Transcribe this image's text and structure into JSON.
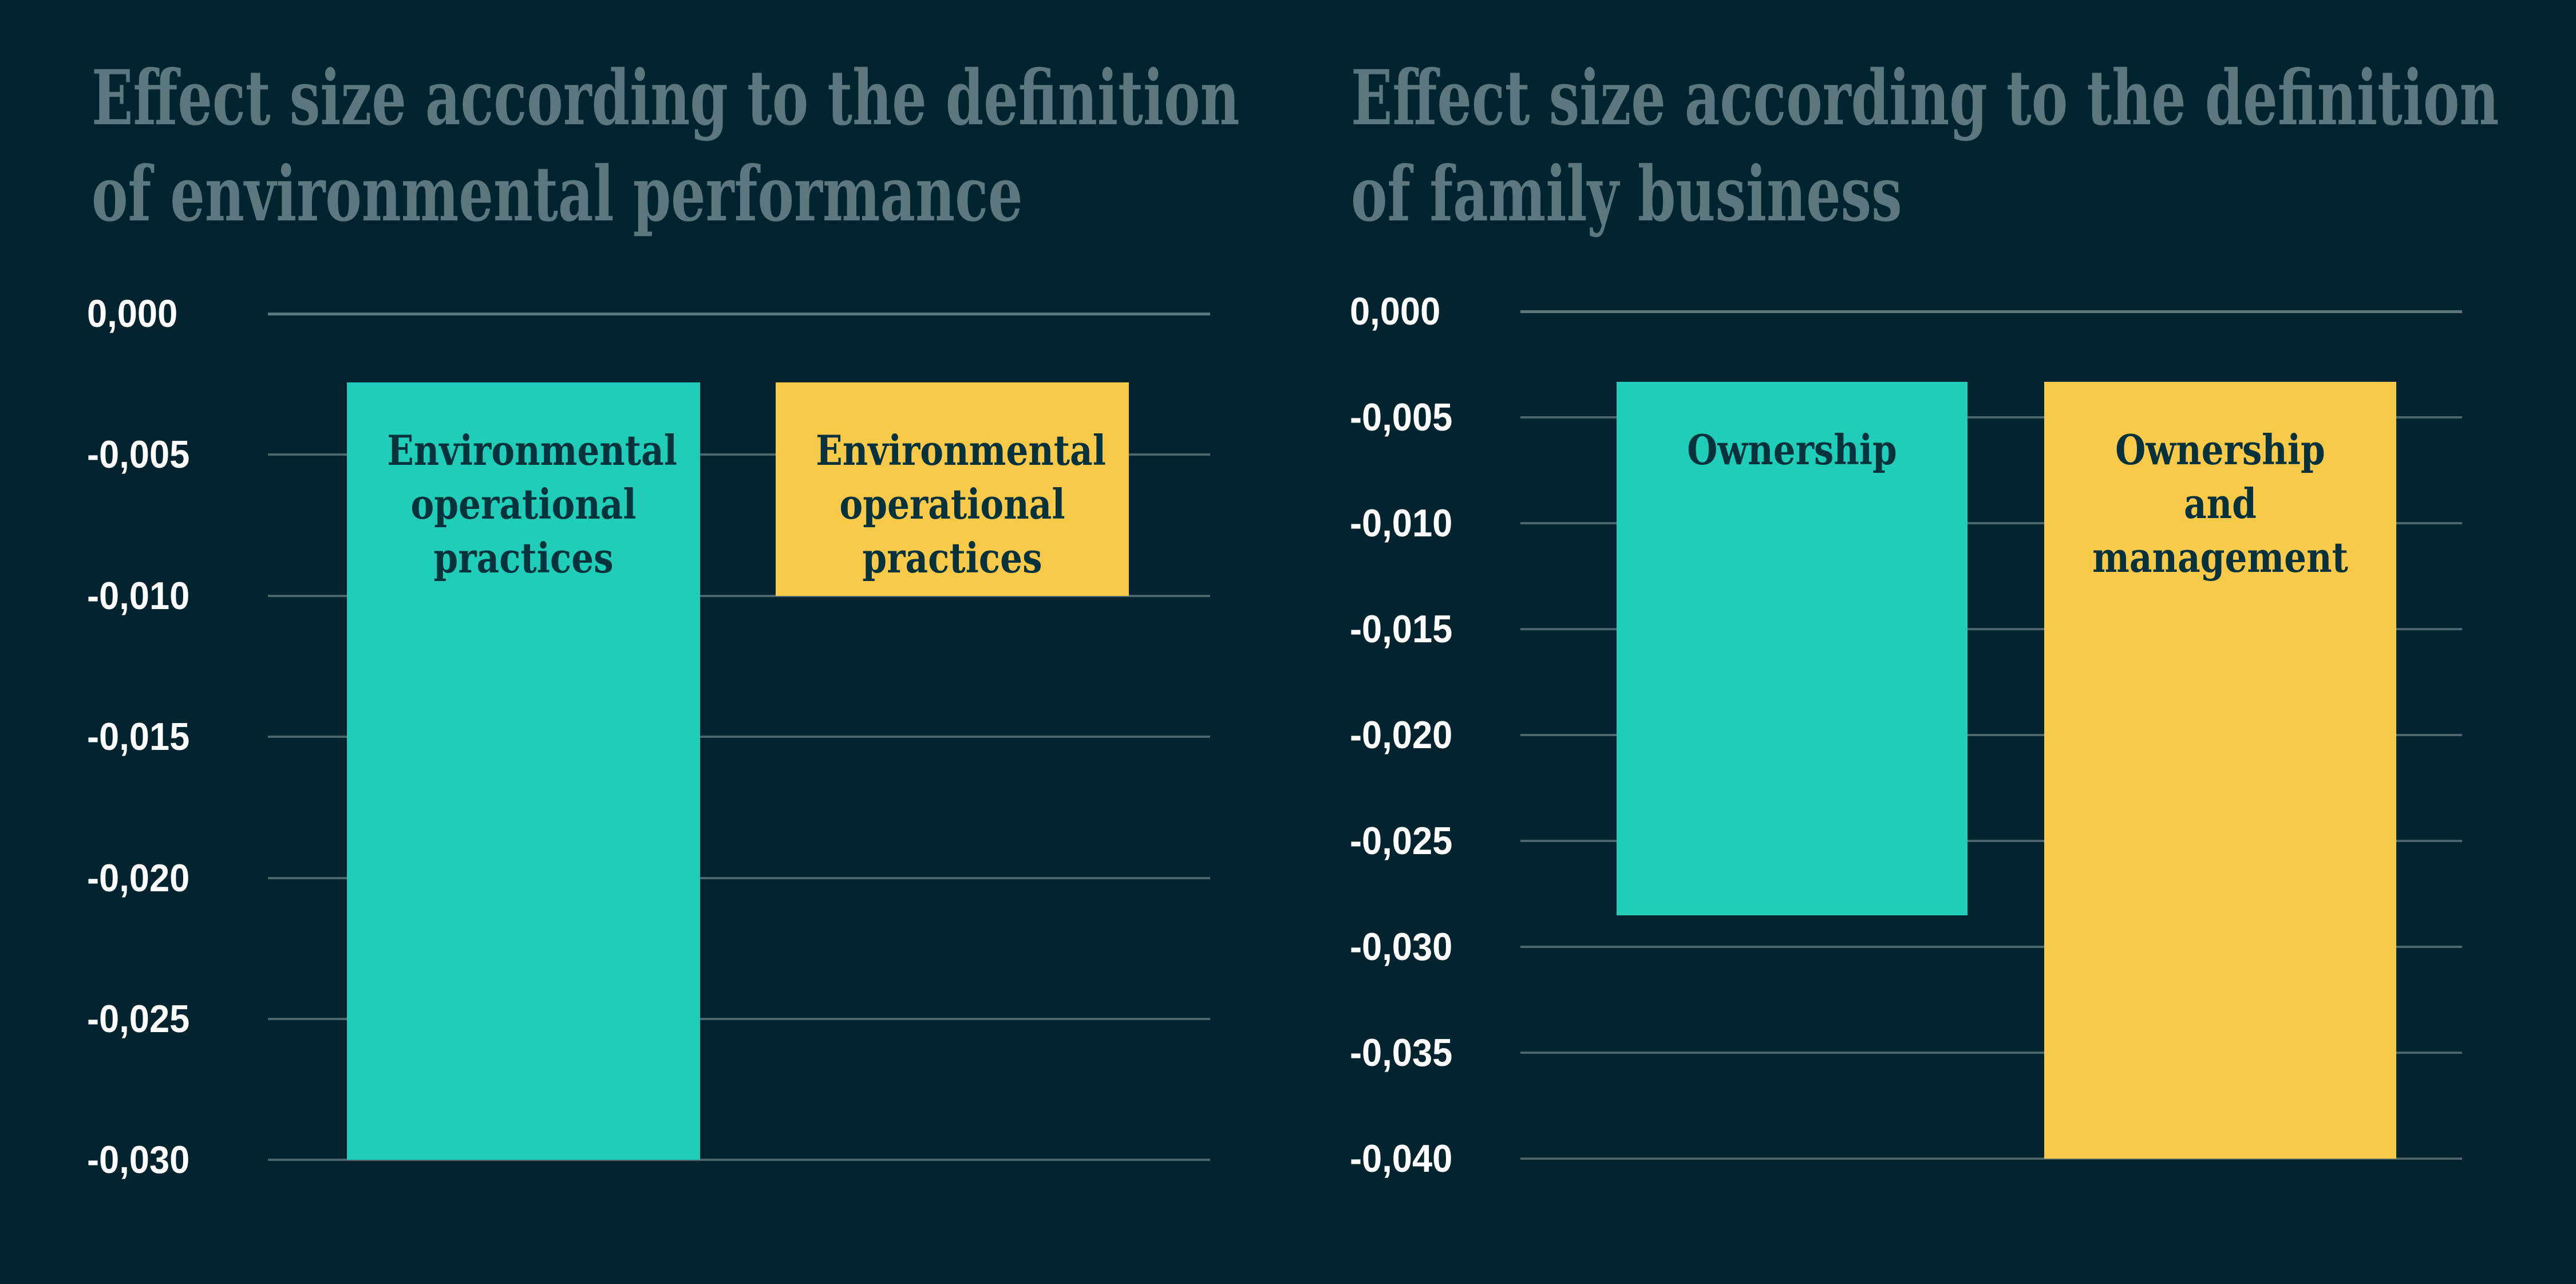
{
  "colors": {
    "background": "#03242e",
    "title_text": "#5c777d",
    "tick_label_text": "#ffffff",
    "gridline": "#4d666d",
    "gridline_zero": "#5d777e",
    "bar_label_text": "#06323d",
    "teal": "#1fcdb8",
    "yellow": "#f9c94a"
  },
  "chart_data": [
    {
      "type": "bar",
      "title": "Effect size according to the definition of environmental performance",
      "title_lines": [
        "Effect size according to the definition",
        "of environmental performance"
      ],
      "categories": [
        "Environmental operational practices",
        "Environmental operational practices"
      ],
      "values": [
        -0.03,
        -0.01
      ],
      "bar_colors": [
        "#1fcdb8",
        "#f9c94a"
      ],
      "xlabel": "",
      "ylabel": "",
      "ylim": [
        -0.03,
        0
      ],
      "ytick_step": -0.005,
      "ytick_labels": [
        "0,000",
        "-0,005",
        "-0,010",
        "-0,015",
        "-0,020",
        "-0,025",
        "-0,030"
      ],
      "grid": true,
      "legend": false,
      "category_labels_inside_bars": true,
      "decimal_separator": ","
    },
    {
      "type": "bar",
      "title": "Effect size according to the definition of family business",
      "title_lines": [
        "Effect size according to the definition",
        "of family business"
      ],
      "categories": [
        "Ownership",
        "Ownership and management"
      ],
      "values": [
        -0.0285,
        -0.04
      ],
      "bar_colors": [
        "#1fcdb8",
        "#f9c94a"
      ],
      "xlabel": "",
      "ylabel": "",
      "ylim": [
        -0.04,
        0
      ],
      "ytick_step": -0.005,
      "ytick_labels": [
        "0,000",
        "-0,005",
        "-0,010",
        "-0,015",
        "-0,020",
        "-0,025",
        "-0,030",
        "-0,035",
        "-0,040"
      ],
      "grid": true,
      "legend": false,
      "category_labels_inside_bars": true,
      "decimal_separator": ","
    }
  ]
}
